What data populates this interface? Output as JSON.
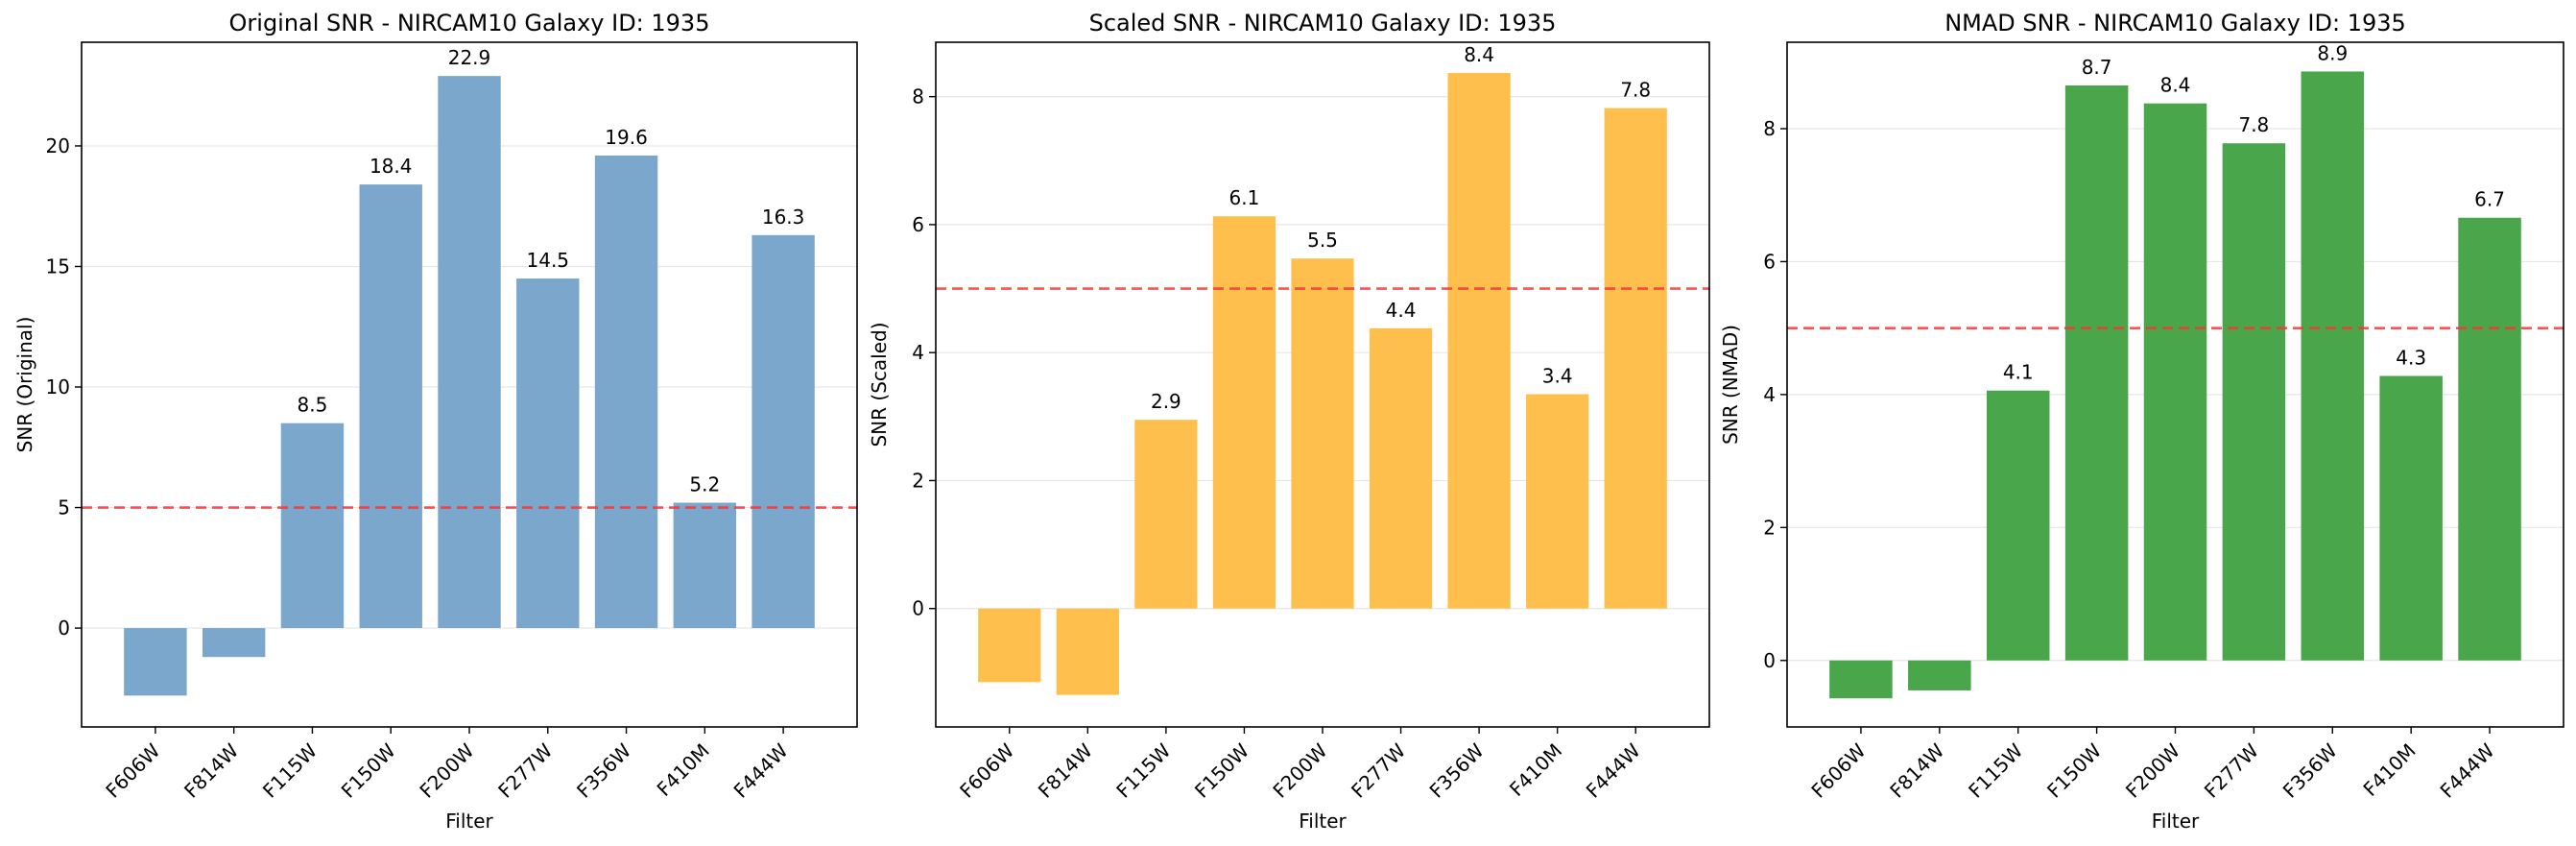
{
  "chart_data": [
    {
      "type": "bar",
      "title": "Original SNR - NIRCAM10 Galaxy ID: 1935",
      "xlabel": "Filter",
      "ylabel": "SNR (Original)",
      "categories": [
        "F606W",
        "F814W",
        "F115W",
        "F150W",
        "F200W",
        "F277W",
        "F356W",
        "F410M",
        "F444W"
      ],
      "values": [
        -2.8,
        -1.2,
        8.5,
        18.4,
        22.9,
        14.5,
        19.6,
        5.2,
        16.3
      ],
      "value_labels": [
        "",
        "",
        "8.5",
        "18.4",
        "22.9",
        "14.5",
        "19.6",
        "5.2",
        "16.3"
      ],
      "ylim": [
        -4.1,
        24.3
      ],
      "yticks": [
        0,
        5,
        10,
        15,
        20
      ],
      "threshold": 5,
      "bar_color": "#7ba7cc",
      "threshold_color": "#ff3333",
      "grid": true
    },
    {
      "type": "bar",
      "title": "Scaled SNR - NIRCAM10 Galaxy ID: 1935",
      "xlabel": "Filter",
      "ylabel": "SNR (Scaled)",
      "categories": [
        "F606W",
        "F814W",
        "F115W",
        "F150W",
        "F200W",
        "F277W",
        "F356W",
        "F410M",
        "F444W"
      ],
      "values": [
        -1.15,
        -1.35,
        2.95,
        6.13,
        5.47,
        4.38,
        8.37,
        3.35,
        7.82
      ],
      "value_labels": [
        "",
        "",
        "2.9",
        "6.1",
        "5.5",
        "4.4",
        "8.4",
        "3.4",
        "7.8"
      ],
      "ylim": [
        -1.85,
        8.85
      ],
      "yticks": [
        0,
        2,
        4,
        6,
        8
      ],
      "threshold": 5,
      "bar_color": "#ffbf4d",
      "threshold_color": "#ff3333",
      "grid": true
    },
    {
      "type": "bar",
      "title": "NMAD SNR - NIRCAM10 Galaxy ID: 1935",
      "xlabel": "Filter",
      "ylabel": "SNR (NMAD)",
      "categories": [
        "F606W",
        "F814W",
        "F115W",
        "F150W",
        "F200W",
        "F277W",
        "F356W",
        "F410M",
        "F444W"
      ],
      "values": [
        -0.57,
        -0.45,
        4.06,
        8.65,
        8.38,
        7.78,
        8.86,
        4.28,
        6.66
      ],
      "value_labels": [
        "",
        "",
        "4.1",
        "8.7",
        "8.4",
        "7.8",
        "8.9",
        "4.3",
        "6.7"
      ],
      "ylim": [
        -1.0,
        9.3
      ],
      "yticks": [
        0,
        2,
        4,
        6,
        8
      ],
      "threshold": 5,
      "bar_color": "#4aa64a",
      "threshold_color": "#ff3333",
      "grid": true
    }
  ]
}
